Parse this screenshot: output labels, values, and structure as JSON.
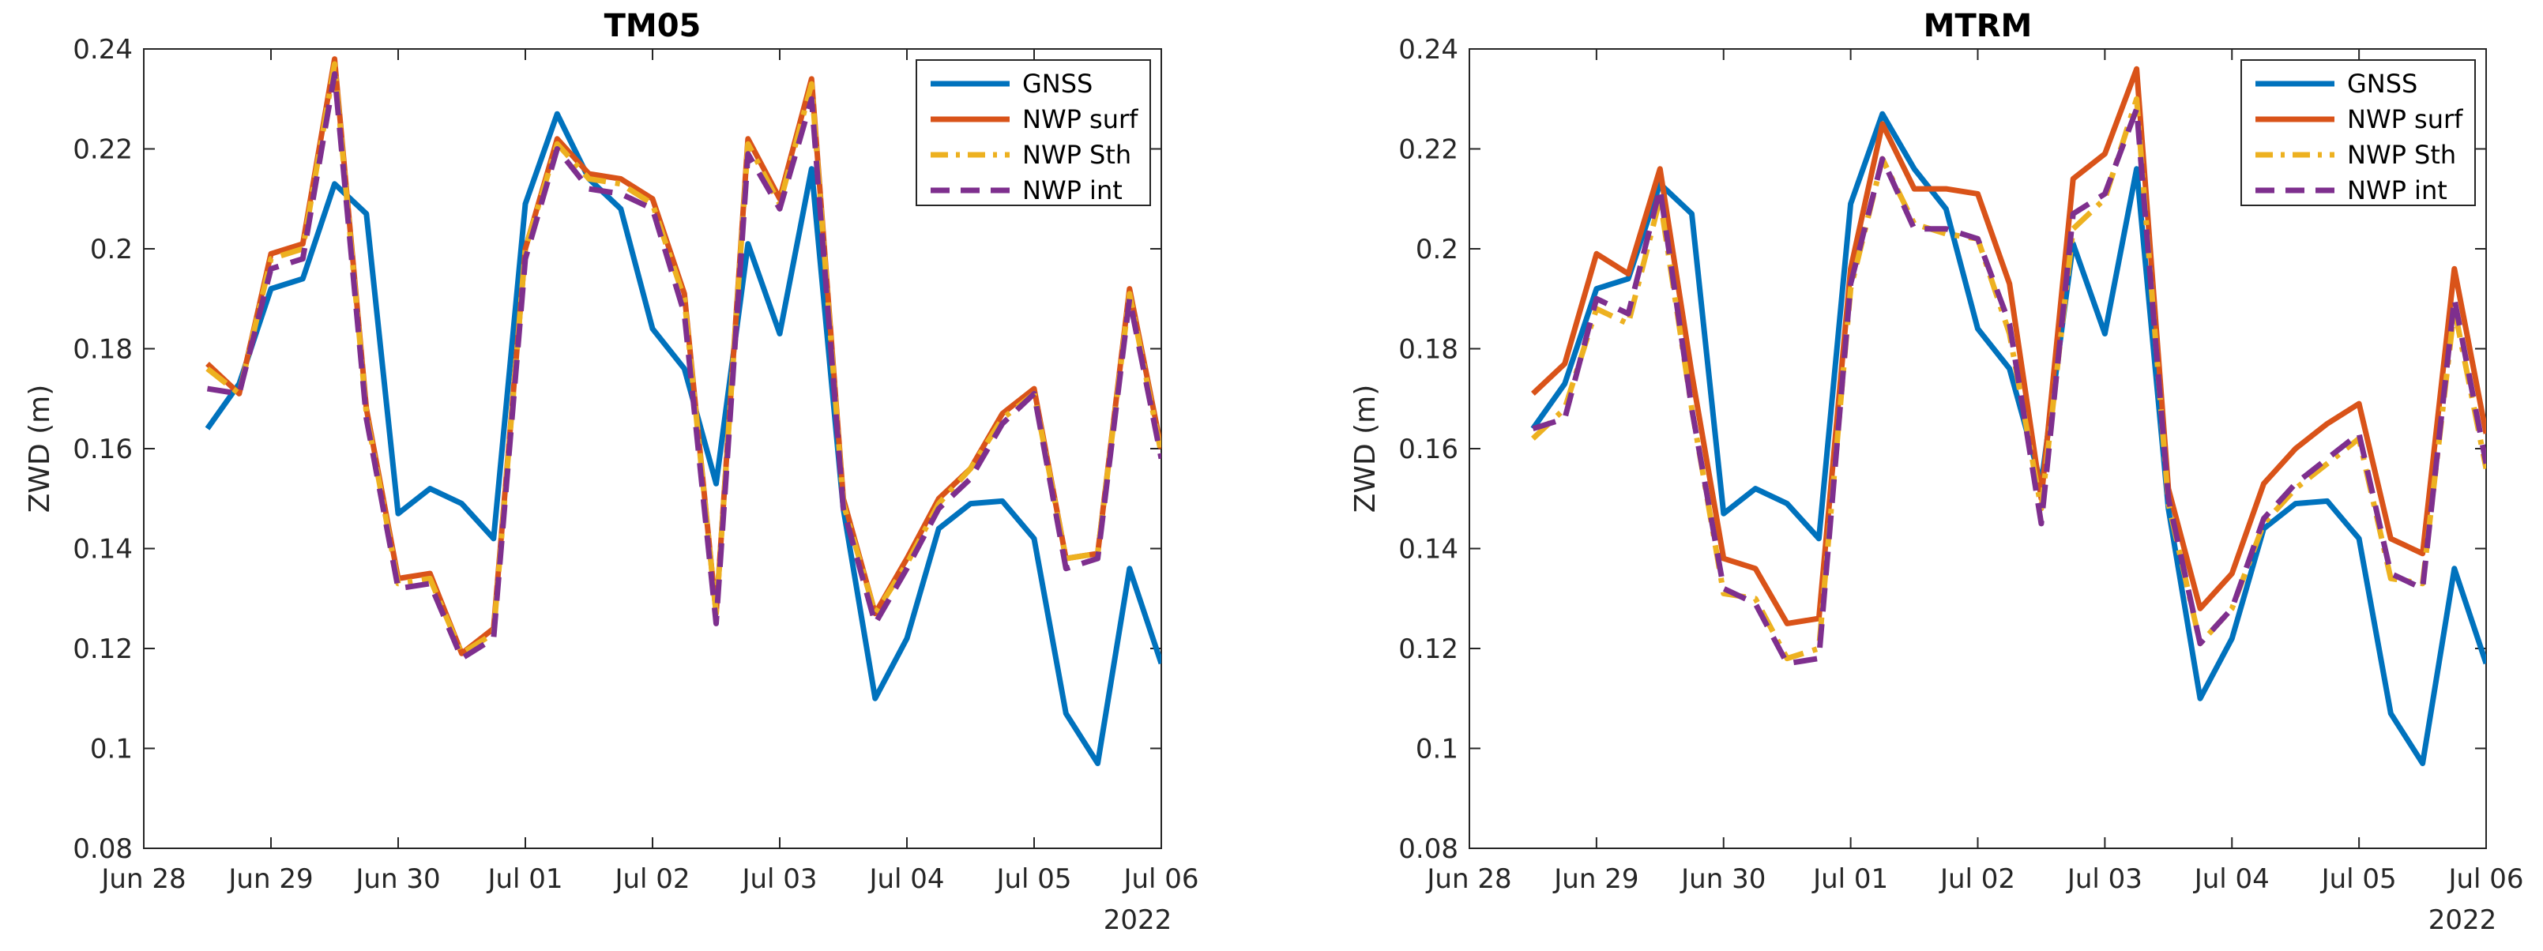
{
  "chart_data": [
    {
      "type": "line",
      "title": "TM05",
      "xlabel": "",
      "ylabel": "ZWD (m)",
      "xlim": [
        0,
        8
      ],
      "ylim": [
        0.08,
        0.24
      ],
      "xticks": [
        0,
        1,
        2,
        3,
        4,
        5,
        6,
        7,
        8
      ],
      "xtick_labels": [
        "Jun 28",
        "Jun 29",
        "Jun 30",
        "Jul 01",
        "Jul 02",
        "Jul 03",
        "Jul 04",
        "Jul 05",
        "Jul 06"
      ],
      "x_secondary_label": "2022",
      "yticks": [
        0.08,
        0.1,
        0.12,
        0.14,
        0.16,
        0.18,
        0.2,
        0.22,
        0.24
      ],
      "ytick_labels": [
        "0.08",
        "0.1",
        "0.12",
        "0.14",
        "0.16",
        "0.18",
        "0.2",
        "0.22",
        "0.24"
      ],
      "legend_position": "top-right",
      "series": [
        {
          "name": "GNSS",
          "color": "#0072BD",
          "dash": "solid",
          "x": [
            0.5,
            0.75,
            1,
            1.25,
            1.5,
            1.75,
            2,
            2.25,
            2.5,
            2.75,
            3,
            3.25,
            3.5,
            3.75,
            4,
            4.25,
            4.5,
            4.75,
            5,
            5.25,
            5.5,
            5.75,
            6,
            6.25,
            6.5,
            6.75,
            7,
            7.25,
            7.5,
            7.75,
            8
          ],
          "values": [
            0.164,
            0.173,
            0.192,
            0.194,
            0.213,
            0.207,
            0.147,
            0.152,
            0.149,
            0.142,
            0.209,
            0.227,
            0.214,
            0.208,
            0.184,
            0.176,
            0.153,
            0.201,
            0.183,
            0.216,
            0.148,
            0.11,
            0.122,
            0.144,
            0.149,
            0.1495,
            0.142,
            0.107,
            0.097,
            0.136,
            0.117
          ]
        },
        {
          "name": "NWP surf",
          "color": "#D95319",
          "dash": "solid",
          "x": [
            0.5,
            0.75,
            1,
            1.25,
            1.5,
            1.75,
            2,
            2.25,
            2.5,
            2.75,
            3,
            3.25,
            3.5,
            3.75,
            4,
            4.25,
            4.5,
            4.75,
            5,
            5.25,
            5.5,
            5.75,
            6,
            6.25,
            6.5,
            6.75,
            7,
            7.25,
            7.5,
            7.75,
            8
          ],
          "values": [
            0.177,
            0.171,
            0.199,
            0.201,
            0.238,
            0.168,
            0.134,
            0.135,
            0.119,
            0.124,
            0.2,
            0.222,
            0.215,
            0.214,
            0.21,
            0.191,
            0.127,
            0.222,
            0.21,
            0.234,
            0.15,
            0.127,
            0.138,
            0.15,
            0.156,
            0.167,
            0.172,
            0.138,
            0.139,
            0.192,
            0.16
          ]
        },
        {
          "name": "NWP Sth",
          "color": "#EDB120",
          "dash": "dashdot",
          "x": [
            0.5,
            0.75,
            1,
            1.25,
            1.5,
            1.75,
            2,
            2.25,
            2.5,
            2.75,
            3,
            3.25,
            3.5,
            3.75,
            4,
            4.25,
            4.5,
            4.75,
            5,
            5.25,
            5.5,
            5.75,
            6,
            6.25,
            6.5,
            6.75,
            7,
            7.25,
            7.5,
            7.75,
            8
          ],
          "values": [
            0.176,
            0.171,
            0.198,
            0.2,
            0.237,
            0.167,
            0.133,
            0.134,
            0.119,
            0.123,
            0.2,
            0.221,
            0.214,
            0.213,
            0.209,
            0.19,
            0.127,
            0.221,
            0.209,
            0.233,
            0.149,
            0.127,
            0.137,
            0.149,
            0.156,
            0.166,
            0.171,
            0.138,
            0.139,
            0.191,
            0.159
          ]
        },
        {
          "name": "NWP int",
          "color": "#7E2F8E",
          "dash": "dashed",
          "x": [
            0.5,
            0.75,
            1,
            1.25,
            1.5,
            1.75,
            2,
            2.25,
            2.5,
            2.75,
            3,
            3.25,
            3.5,
            3.75,
            4,
            4.25,
            4.5,
            4.75,
            5,
            5.25,
            5.5,
            5.75,
            6,
            6.25,
            6.5,
            6.75,
            7,
            7.25,
            7.5,
            7.75,
            8
          ],
          "values": [
            0.172,
            0.171,
            0.196,
            0.198,
            0.235,
            0.166,
            0.132,
            0.133,
            0.118,
            0.122,
            0.198,
            0.22,
            0.212,
            0.211,
            0.208,
            0.187,
            0.125,
            0.219,
            0.208,
            0.23,
            0.148,
            0.125,
            0.136,
            0.148,
            0.154,
            0.165,
            0.171,
            0.136,
            0.138,
            0.19,
            0.158
          ]
        }
      ]
    },
    {
      "type": "line",
      "title": "MTRM",
      "xlabel": "",
      "ylabel": "ZWD (m)",
      "xlim": [
        0,
        8
      ],
      "ylim": [
        0.08,
        0.24
      ],
      "xticks": [
        0,
        1,
        2,
        3,
        4,
        5,
        6,
        7,
        8
      ],
      "xtick_labels": [
        "Jun 28",
        "Jun 29",
        "Jun 30",
        "Jul 01",
        "Jul 02",
        "Jul 03",
        "Jul 04",
        "Jul 05",
        "Jul 06"
      ],
      "x_secondary_label": "2022",
      "yticks": [
        0.08,
        0.1,
        0.12,
        0.14,
        0.16,
        0.18,
        0.2,
        0.22,
        0.24
      ],
      "ytick_labels": [
        "0.08",
        "0.1",
        "0.12",
        "0.14",
        "0.16",
        "0.18",
        "0.2",
        "0.22",
        "0.24"
      ],
      "legend_position": "top-right",
      "series": [
        {
          "name": "GNSS",
          "color": "#0072BD",
          "dash": "solid",
          "x": [
            0.5,
            0.75,
            1,
            1.25,
            1.5,
            1.75,
            2,
            2.25,
            2.5,
            2.75,
            3,
            3.25,
            3.5,
            3.75,
            4,
            4.25,
            4.5,
            4.75,
            5,
            5.25,
            5.5,
            5.75,
            6,
            6.25,
            6.5,
            6.75,
            7,
            7.25,
            7.5,
            7.75,
            8
          ],
          "values": [
            0.164,
            0.173,
            0.192,
            0.194,
            0.213,
            0.207,
            0.147,
            0.152,
            0.149,
            0.142,
            0.209,
            0.227,
            0.216,
            0.208,
            0.184,
            0.176,
            0.153,
            0.201,
            0.183,
            0.216,
            0.148,
            0.11,
            0.122,
            0.144,
            0.149,
            0.1495,
            0.142,
            0.107,
            0.097,
            0.136,
            0.117
          ]
        },
        {
          "name": "NWP surf",
          "color": "#D95319",
          "dash": "solid",
          "x": [
            0.5,
            0.75,
            1,
            1.25,
            1.5,
            1.75,
            2,
            2.25,
            2.5,
            2.75,
            3,
            3.25,
            3.5,
            3.75,
            4,
            4.25,
            4.5,
            4.75,
            5,
            5.25,
            5.5,
            5.75,
            6,
            6.25,
            6.5,
            6.75,
            7,
            7.25,
            7.5,
            7.75,
            8
          ],
          "values": [
            0.171,
            0.177,
            0.199,
            0.195,
            0.216,
            0.175,
            0.138,
            0.136,
            0.125,
            0.126,
            0.196,
            0.225,
            0.212,
            0.212,
            0.211,
            0.193,
            0.15,
            0.214,
            0.219,
            0.236,
            0.152,
            0.128,
            0.135,
            0.153,
            0.16,
            0.165,
            0.169,
            0.142,
            0.139,
            0.196,
            0.163
          ]
        },
        {
          "name": "NWP Sth",
          "color": "#EDB120",
          "dash": "dashdot",
          "x": [
            0.5,
            0.75,
            1,
            1.25,
            1.5,
            1.75,
            2,
            2.25,
            2.5,
            2.75,
            3,
            3.25,
            3.5,
            3.75,
            4,
            4.25,
            4.5,
            4.75,
            5,
            5.25,
            5.5,
            5.75,
            6,
            6.25,
            6.5,
            6.75,
            7,
            7.25,
            7.5,
            7.75,
            8
          ],
          "values": [
            0.162,
            0.168,
            0.188,
            0.185,
            0.21,
            0.168,
            0.131,
            0.13,
            0.118,
            0.12,
            0.192,
            0.218,
            0.205,
            0.203,
            0.202,
            0.183,
            0.148,
            0.204,
            0.21,
            0.23,
            0.149,
            0.121,
            0.128,
            0.145,
            0.152,
            0.157,
            0.162,
            0.134,
            0.133,
            0.188,
            0.156
          ]
        },
        {
          "name": "NWP int",
          "color": "#7E2F8E",
          "dash": "dashed",
          "x": [
            0.5,
            0.75,
            1,
            1.25,
            1.5,
            1.75,
            2,
            2.25,
            2.5,
            2.75,
            3,
            3.25,
            3.5,
            3.75,
            4,
            4.25,
            4.5,
            4.75,
            5,
            5.25,
            5.5,
            5.75,
            6,
            6.25,
            6.5,
            6.75,
            7,
            7.25,
            7.5,
            7.75,
            8
          ],
          "values": [
            0.164,
            0.166,
            0.19,
            0.187,
            0.212,
            0.168,
            0.132,
            0.129,
            0.117,
            0.118,
            0.193,
            0.218,
            0.204,
            0.204,
            0.202,
            0.185,
            0.145,
            0.207,
            0.211,
            0.228,
            0.15,
            0.121,
            0.128,
            0.146,
            0.153,
            0.158,
            0.163,
            0.135,
            0.132,
            0.19,
            0.157
          ]
        }
      ]
    }
  ]
}
